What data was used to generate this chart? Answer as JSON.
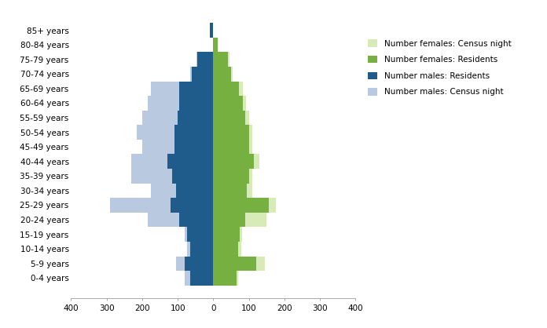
{
  "age_groups": [
    "0-4 years",
    "5-9 years",
    "10-14 years",
    "15-19 years",
    "20-24 years",
    "25-29 years",
    "30-34 years",
    "35-39 years",
    "40-44 years",
    "45-49 years",
    "50-54 years",
    "55-59 years",
    "60-64 years",
    "65-69 years",
    "70-74 years",
    "75-79 years",
    "80-84 years",
    "85+ years"
  ],
  "males_census_night": [
    80,
    105,
    75,
    80,
    185,
    290,
    175,
    230,
    230,
    200,
    215,
    200,
    185,
    175,
    65,
    48,
    0,
    0
  ],
  "males_residents": [
    65,
    80,
    65,
    75,
    95,
    120,
    105,
    115,
    130,
    110,
    110,
    100,
    95,
    95,
    60,
    45,
    0,
    10
  ],
  "females_residents": [
    65,
    120,
    70,
    75,
    90,
    155,
    95,
    100,
    115,
    100,
    100,
    90,
    82,
    72,
    50,
    40,
    12,
    0
  ],
  "females_census_night": [
    70,
    145,
    78,
    80,
    150,
    175,
    110,
    110,
    130,
    110,
    110,
    100,
    92,
    82,
    55,
    45,
    12,
    0
  ],
  "color_males_census_night": "#b8c9e0",
  "color_males_residents": "#1f5c8b",
  "color_females_residents": "#76b041",
  "color_females_census_night": "#d6ebb8",
  "xlim": 400,
  "xtick_step": 100,
  "legend_labels": [
    "Number females: Census night",
    "Number females: Residents",
    "Number males: Residents",
    "Number males: Census night"
  ],
  "legend_colors": [
    "#d6ebb8",
    "#76b041",
    "#1f5c8b",
    "#b8c9e0"
  ],
  "bar_height": 1.0
}
